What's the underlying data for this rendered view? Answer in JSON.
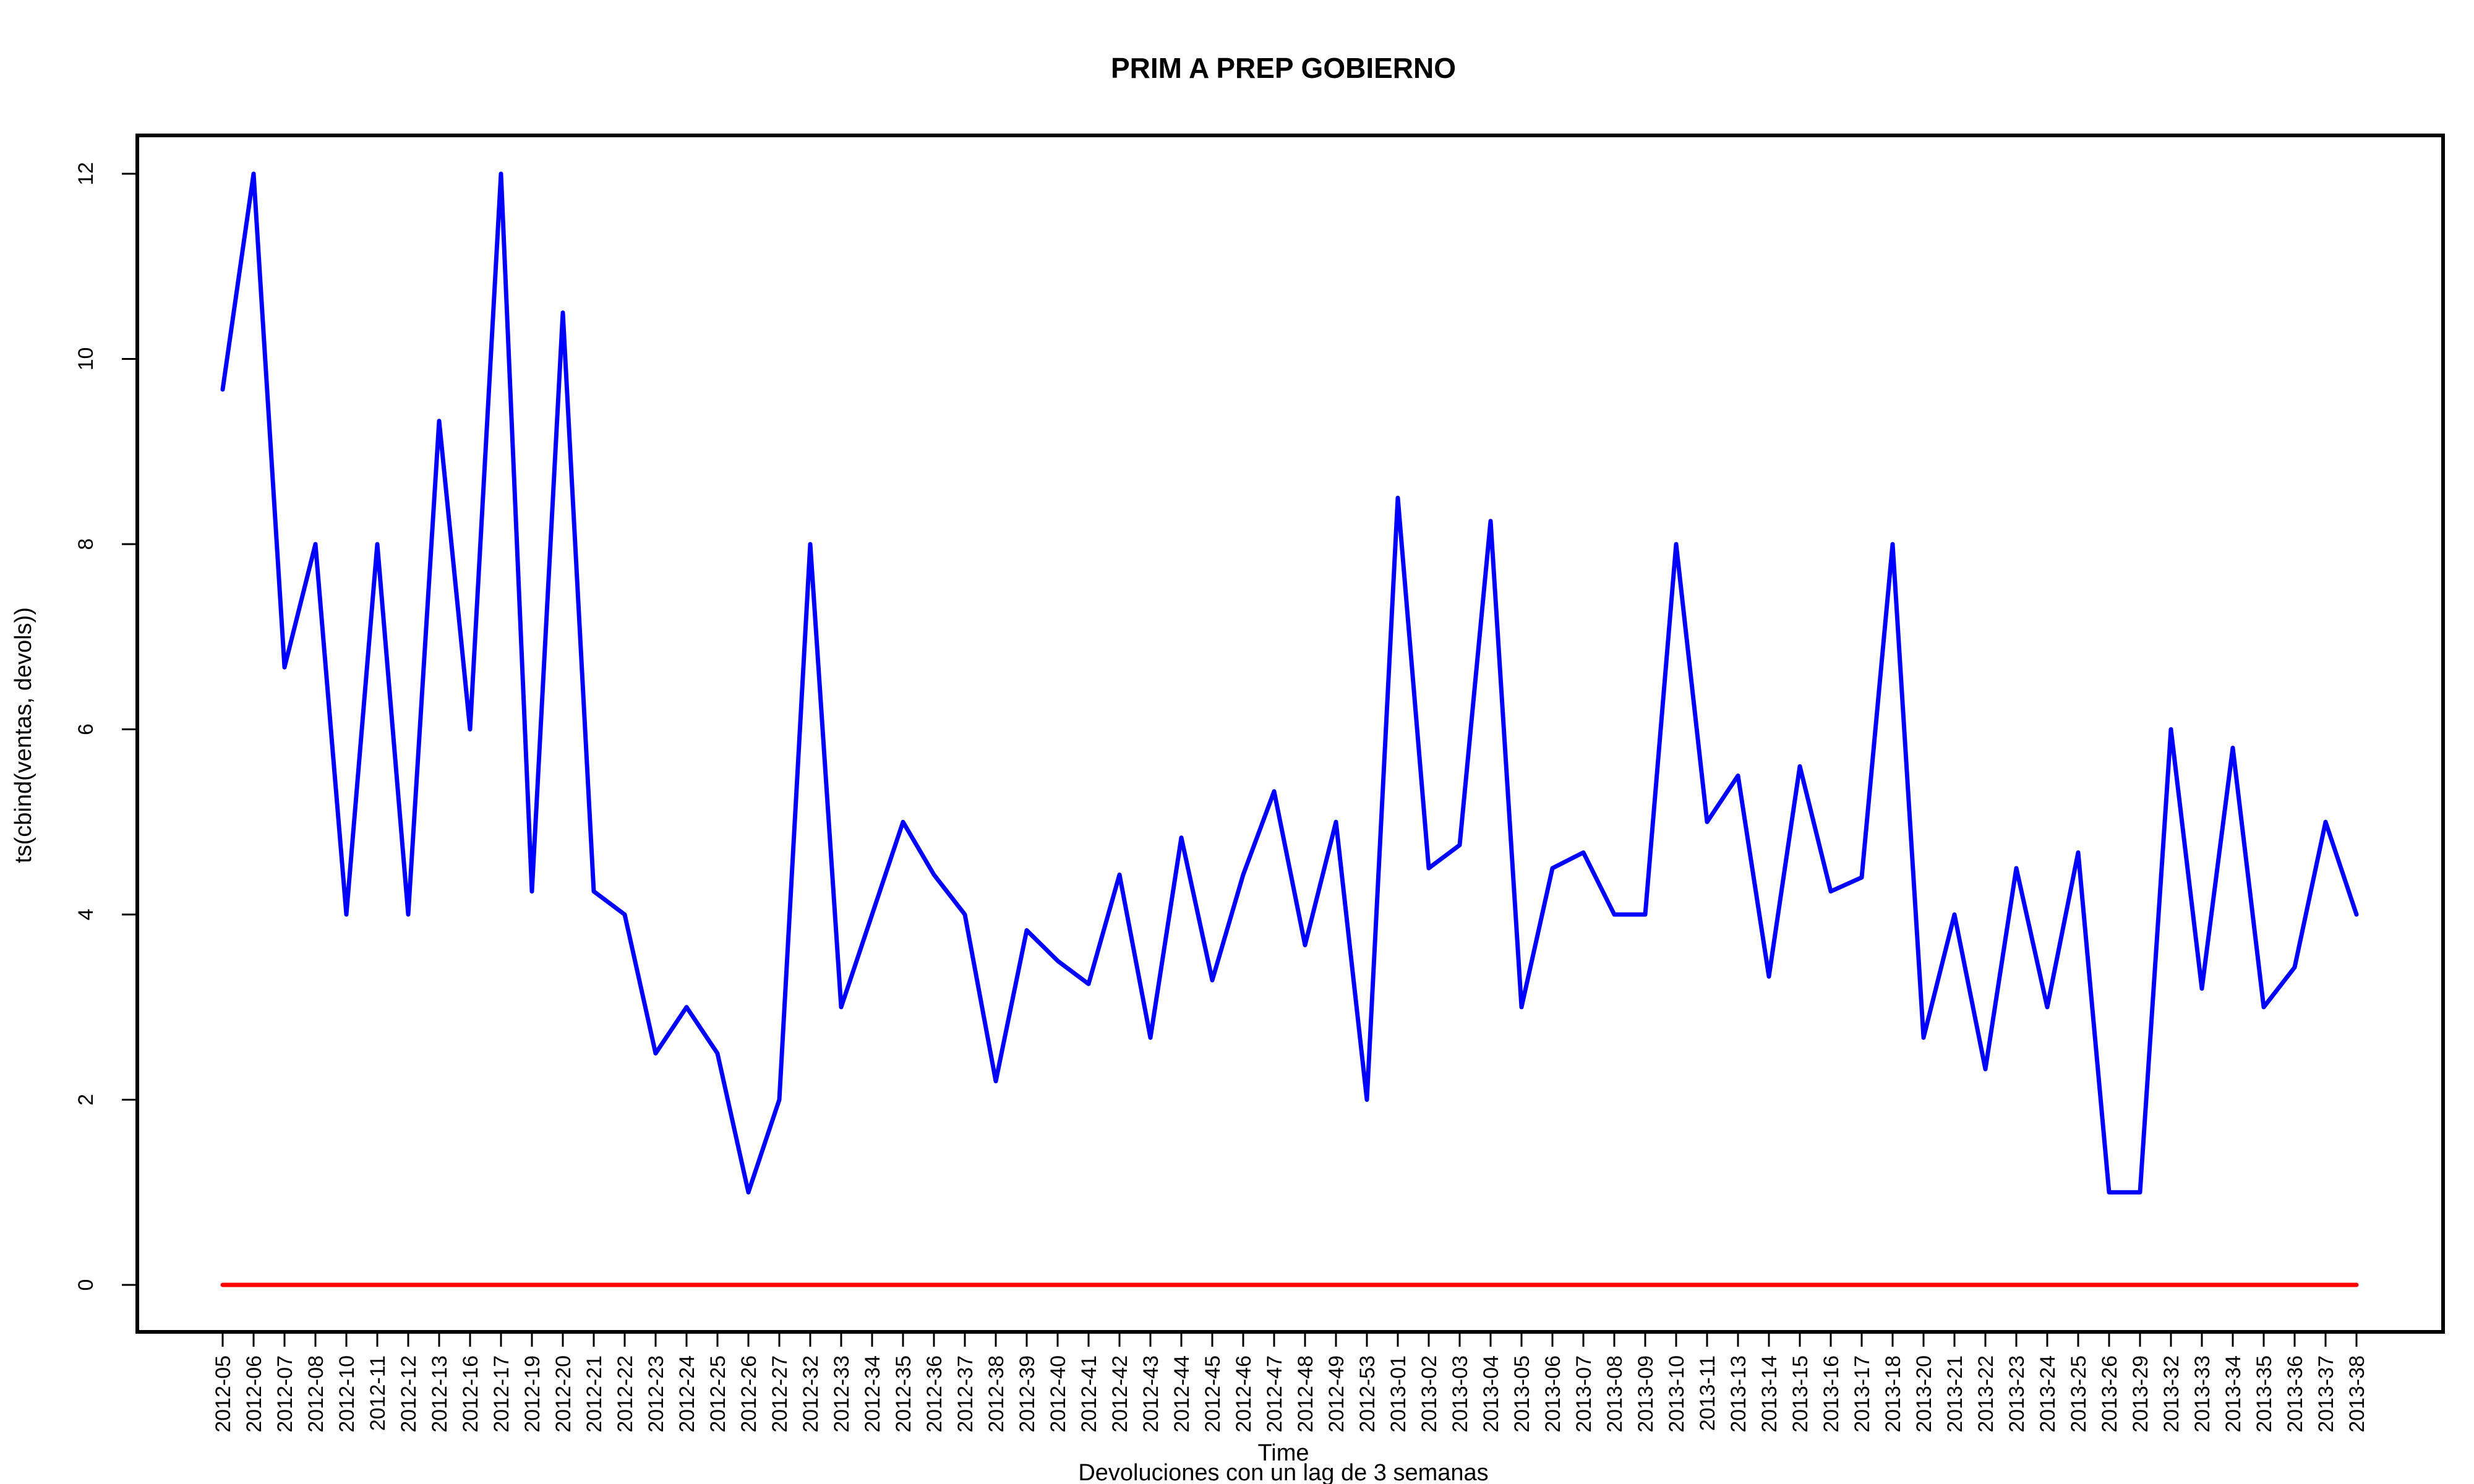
{
  "chart_data": {
    "type": "line",
    "title": "PRIM A PREP GOBIERNO",
    "xlabel": "Time",
    "ylabel": "ts(cbind(ventas, devols))",
    "caption": "Devoluciones con un lag de 3 semanas",
    "ylim": [
      -0.5,
      12.5
    ],
    "yticks": [
      0,
      2,
      4,
      6,
      8,
      10,
      12
    ],
    "grid": false,
    "legend": "none",
    "categories": [
      "2012-05",
      "2012-06",
      "2012-07",
      "2012-08",
      "2012-10",
      "2012-11",
      "2012-12",
      "2012-13",
      "2012-16",
      "2012-17",
      "2012-19",
      "2012-20",
      "2012-21",
      "2012-22",
      "2012-23",
      "2012-24",
      "2012-25",
      "2012-26",
      "2012-27",
      "2012-32",
      "2012-33",
      "2012-34",
      "2012-35",
      "2012-36",
      "2012-37",
      "2012-38",
      "2012-39",
      "2012-40",
      "2012-41",
      "2012-42",
      "2012-43",
      "2012-44",
      "2012-45",
      "2012-46",
      "2012-47",
      "2012-48",
      "2012-49",
      "2012-53",
      "2013-01",
      "2013-02",
      "2013-03",
      "2013-04",
      "2013-05",
      "2013-06",
      "2013-07",
      "2013-08",
      "2013-09",
      "2013-10",
      "2013-11",
      "2013-13",
      "2013-14",
      "2013-15",
      "2013-16",
      "2013-17",
      "2013-18",
      "2013-20",
      "2013-21",
      "2013-22",
      "2013-23",
      "2013-24",
      "2013-25",
      "2013-26",
      "2013-29",
      "2013-32",
      "2013-33",
      "2013-34",
      "2013-35",
      "2013-36",
      "2013-37",
      "2013-38"
    ],
    "series": [
      {
        "color": "#0000ff",
        "values": [
          9.67,
          12,
          6.67,
          8,
          4,
          8,
          4,
          9.33,
          6,
          12,
          4.25,
          10.5,
          4.25,
          4,
          2.5,
          3,
          2.5,
          1,
          2,
          8,
          3,
          4,
          5,
          4.43,
          4,
          2.2,
          3.83,
          3.5,
          3.25,
          4.43,
          2.67,
          4.83,
          3.29,
          4.43,
          5.33,
          3.67,
          5,
          2,
          8.5,
          4.5,
          4.75,
          8.25,
          3,
          4.5,
          4.67,
          4,
          4,
          8,
          5,
          5.5,
          3.33,
          5.6,
          4.25,
          4.4,
          8,
          2.67,
          4,
          2.33,
          4.5,
          3,
          4.67,
          1,
          1,
          6,
          3.2,
          5.8,
          3,
          3.43,
          5,
          4
        ]
      },
      {
        "color": "#ff0000",
        "values": [
          0,
          0,
          0,
          0,
          0,
          0,
          0,
          0,
          0,
          0,
          0,
          0,
          0,
          0,
          0,
          0,
          0,
          0,
          0,
          0,
          0,
          0,
          0,
          0,
          0,
          0,
          0,
          0,
          0,
          0,
          0,
          0,
          0,
          0,
          0,
          0,
          0,
          0,
          0,
          0,
          0,
          0,
          0,
          0,
          0,
          0,
          0,
          0,
          0,
          0,
          0,
          0,
          0,
          0,
          0,
          0,
          0,
          0,
          0,
          0,
          0,
          0,
          0,
          0,
          0,
          0,
          0,
          0,
          0,
          0
        ]
      }
    ]
  }
}
